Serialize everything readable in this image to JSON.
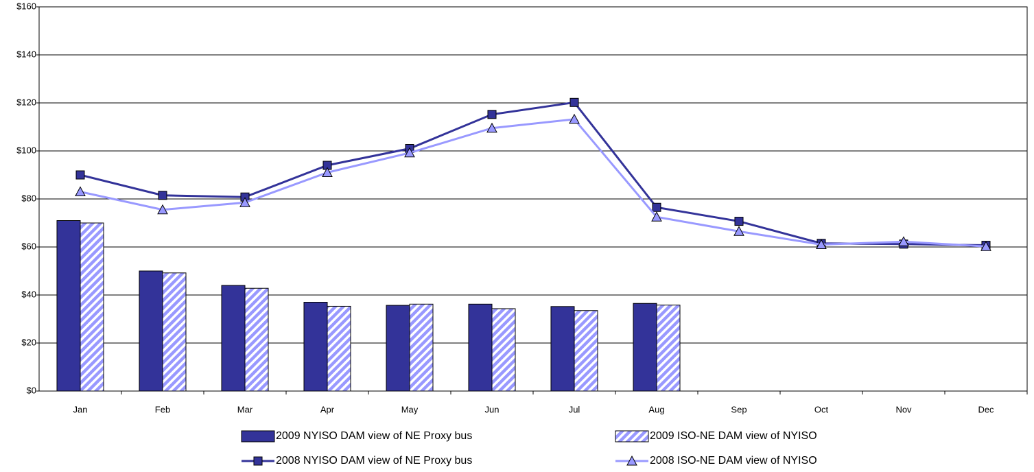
{
  "chart_data": {
    "type": "combo",
    "categories": [
      "Jan",
      "Feb",
      "Mar",
      "Apr",
      "May",
      "Jun",
      "Jul",
      "Aug",
      "Sep",
      "Oct",
      "Nov",
      "Dec"
    ],
    "series": [
      {
        "name": "2009 NYISO DAM view of NE Proxy bus",
        "kind": "bar",
        "color": "#333399",
        "values": [
          71,
          50,
          44,
          37,
          35.7,
          36.2,
          35.2,
          36.5,
          null,
          null,
          null,
          null
        ]
      },
      {
        "name": "2009 ISO-NE DAM view of NYISO",
        "kind": "bar",
        "color": "#9999ff",
        "pattern": "hatch",
        "values": [
          70,
          49.2,
          42.8,
          35.3,
          36.2,
          34.3,
          33.5,
          35.8,
          null,
          null,
          null,
          null
        ]
      },
      {
        "name": "2008 NYISO DAM view of NE Proxy bus",
        "kind": "line",
        "marker": "square",
        "color": "#333399",
        "values": [
          90,
          81.5,
          80.8,
          94,
          101,
          115.2,
          120.2,
          76.5,
          70.7,
          61.5,
          61.2,
          60.7
        ]
      },
      {
        "name": "2008 ISO-NE DAM view of NYISO",
        "kind": "line",
        "marker": "triangle",
        "color": "#9999ff",
        "values": [
          83,
          75.5,
          78.5,
          91,
          99.2,
          109.5,
          113.2,
          72.5,
          66.5,
          61,
          62.2,
          60.2
        ]
      }
    ],
    "ylim": [
      0,
      160
    ],
    "yticks": [
      {
        "value": 0,
        "label": "$0"
      },
      {
        "value": 20,
        "label": "$20"
      },
      {
        "value": 40,
        "label": "$40"
      },
      {
        "value": 60,
        "label": "$60"
      },
      {
        "value": 80,
        "label": "$80"
      },
      {
        "value": 100,
        "label": "$100"
      },
      {
        "value": 120,
        "label": "$120"
      },
      {
        "value": 140,
        "label": "$140"
      },
      {
        "value": 160,
        "label": "$160"
      }
    ],
    "grid": true
  }
}
